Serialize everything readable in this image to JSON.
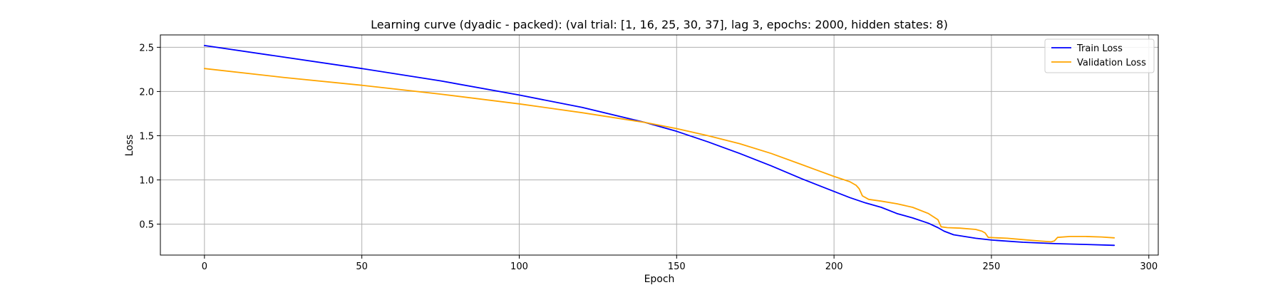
{
  "chart_data": {
    "type": "line",
    "title": "Learning curve (dyadic - packed): (val trial: [1, 16, 25, 30, 37], lag 3, epochs: 2000, hidden states: 8)",
    "xlabel": "Epoch",
    "ylabel": "Loss",
    "xlim": [
      -14,
      303
    ],
    "ylim": [
      0.15,
      2.64
    ],
    "xticks": [
      0,
      50,
      100,
      150,
      200,
      250,
      300
    ],
    "yticks": [
      0.5,
      1.0,
      1.5,
      2.0,
      2.5
    ],
    "xtick_labels": [
      "0",
      "50",
      "100",
      "150",
      "200",
      "250",
      "300"
    ],
    "ytick_labels": [
      "0.5",
      "1.0",
      "1.5",
      "2.0",
      "2.5"
    ],
    "grid": true,
    "legend_position": "top-right",
    "series": [
      {
        "name": "Train Loss",
        "color": "#0000ff",
        "points": [
          [
            0,
            2.52
          ],
          [
            25,
            2.39
          ],
          [
            50,
            2.26
          ],
          [
            75,
            2.12
          ],
          [
            100,
            1.96
          ],
          [
            120,
            1.82
          ],
          [
            140,
            1.65
          ],
          [
            150,
            1.55
          ],
          [
            160,
            1.43
          ],
          [
            170,
            1.3
          ],
          [
            180,
            1.16
          ],
          [
            190,
            1.01
          ],
          [
            200,
            0.87
          ],
          [
            205,
            0.8
          ],
          [
            210,
            0.74
          ],
          [
            215,
            0.69
          ],
          [
            220,
            0.62
          ],
          [
            225,
            0.57
          ],
          [
            230,
            0.51
          ],
          [
            233,
            0.46
          ],
          [
            235,
            0.42
          ],
          [
            238,
            0.38
          ],
          [
            245,
            0.34
          ],
          [
            250,
            0.32
          ],
          [
            260,
            0.295
          ],
          [
            270,
            0.28
          ],
          [
            280,
            0.27
          ],
          [
            289,
            0.26
          ]
        ]
      },
      {
        "name": "Validation Loss",
        "color": "#ffa500",
        "points": [
          [
            0,
            2.26
          ],
          [
            25,
            2.16
          ],
          [
            50,
            2.07
          ],
          [
            75,
            1.97
          ],
          [
            100,
            1.86
          ],
          [
            120,
            1.76
          ],
          [
            140,
            1.65
          ],
          [
            150,
            1.58
          ],
          [
            160,
            1.5
          ],
          [
            170,
            1.41
          ],
          [
            180,
            1.3
          ],
          [
            190,
            1.17
          ],
          [
            200,
            1.04
          ],
          [
            205,
            0.98
          ],
          [
            207,
            0.94
          ],
          [
            208,
            0.9
          ],
          [
            209,
            0.82
          ],
          [
            211,
            0.78
          ],
          [
            215,
            0.76
          ],
          [
            220,
            0.73
          ],
          [
            225,
            0.69
          ],
          [
            230,
            0.62
          ],
          [
            233,
            0.55
          ],
          [
            234,
            0.47
          ],
          [
            236,
            0.46
          ],
          [
            240,
            0.455
          ],
          [
            245,
            0.44
          ],
          [
            247,
            0.42
          ],
          [
            248,
            0.4
          ],
          [
            249,
            0.35
          ],
          [
            255,
            0.34
          ],
          [
            260,
            0.325
          ],
          [
            265,
            0.31
          ],
          [
            269,
            0.3
          ],
          [
            270,
            0.31
          ],
          [
            271,
            0.35
          ],
          [
            275,
            0.36
          ],
          [
            280,
            0.36
          ],
          [
            285,
            0.355
          ],
          [
            289,
            0.345
          ]
        ]
      }
    ]
  }
}
